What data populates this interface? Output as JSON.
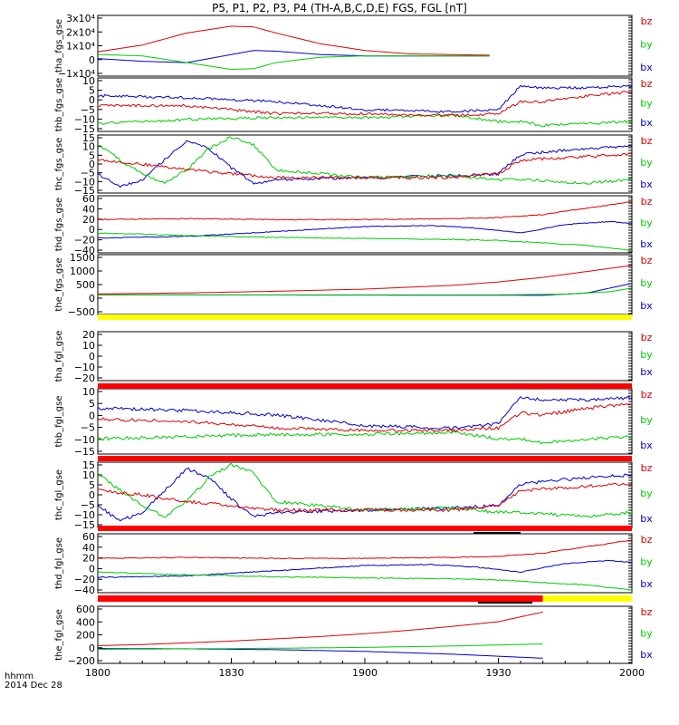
{
  "title": "P5, P1, P2, P3, P4 (TH-A,B,C,D,E) FGS, FGL [nT]",
  "footer": {
    "label1": "hhmm",
    "label2": "2014 Dec 28"
  },
  "time_ticks": [
    "1800",
    "1830",
    "1900",
    "1930",
    "2000"
  ],
  "colors": {
    "bz": "#dd0000",
    "by": "#00cc00",
    "bx": "#0000cc",
    "bar_red": "#ff0000",
    "bar_yellow": "#ffff00",
    "bar_black": "#000000"
  },
  "chart_data": [
    {
      "type": "line",
      "ylabel": "tha_fgs_gse",
      "ylim": [
        -15000,
        30000
      ],
      "ytick_labels": [
        "3x10⁴",
        "2x10⁴",
        "1x10⁴",
        "0",
        "−1x10⁴"
      ],
      "legend": [
        "bz",
        "by",
        "bx"
      ],
      "time_range": [
        "18:00",
        "19:28"
      ],
      "series": [
        {
          "name": "bz",
          "x": [
            "18:00",
            "18:10",
            "18:20",
            "18:30",
            "18:35",
            "18:40",
            "18:50",
            "19:00",
            "19:10",
            "19:28"
          ],
          "values": [
            3000,
            8000,
            17000,
            22000,
            21500,
            17000,
            9000,
            4000,
            1500,
            500
          ]
        },
        {
          "name": "by",
          "x": [
            "18:00",
            "18:10",
            "18:20",
            "18:30",
            "18:35",
            "18:40",
            "18:50",
            "19:00",
            "19:28"
          ],
          "values": [
            1000,
            0,
            -5000,
            -10000,
            -9500,
            -5000,
            -1000,
            0,
            0
          ]
        },
        {
          "name": "bx",
          "x": [
            "18:00",
            "18:10",
            "18:20",
            "18:30",
            "18:35",
            "18:40",
            "18:50",
            "19:00",
            "19:28"
          ],
          "values": [
            -2000,
            -4000,
            -5000,
            1000,
            4000,
            3500,
            1000,
            0,
            0
          ]
        }
      ]
    },
    {
      "type": "line",
      "ylabel": "thb_fgs_gse",
      "ylim": [
        -15,
        12
      ],
      "ytick_labels": [
        "10",
        "5",
        "0",
        "−5",
        "−10",
        "−15"
      ],
      "legend": [
        "bz",
        "by",
        "bx"
      ],
      "series": [
        {
          "name": "bz",
          "x": [
            "18:00",
            "18:20",
            "18:40",
            "19:00",
            "19:20",
            "19:30",
            "19:35",
            "19:40",
            "19:50",
            "20:00"
          ],
          "values": [
            -2,
            -2,
            -6,
            -6,
            -7,
            -6,
            0,
            0,
            3,
            5
          ]
        },
        {
          "name": "by",
          "x": [
            "18:00",
            "18:20",
            "18:40",
            "19:00",
            "19:20",
            "19:30",
            "19:35",
            "19:40",
            "19:50",
            "20:00"
          ],
          "values": [
            -11,
            -9,
            -8,
            -8,
            -7,
            -10,
            -10,
            -12,
            -11,
            -10
          ]
        },
        {
          "name": "bx",
          "x": [
            "18:00",
            "18:20",
            "18:40",
            "19:00",
            "19:20",
            "19:30",
            "19:35",
            "19:40",
            "19:50",
            "20:00"
          ],
          "values": [
            3,
            2,
            0,
            -4,
            -5,
            -4,
            8,
            7,
            7,
            8
          ]
        }
      ]
    },
    {
      "type": "line",
      "ylabel": "thc_fgs_gse",
      "ylim": [
        -15,
        15
      ],
      "ytick_labels": [
        "15",
        "10",
        "5",
        "0",
        "−5",
        "−10",
        "−15"
      ],
      "legend": [
        "bz",
        "by",
        "bx"
      ],
      "series": [
        {
          "name": "bz",
          "x": [
            "18:00",
            "18:10",
            "18:20",
            "18:30",
            "18:40",
            "19:00",
            "19:20",
            "19:30",
            "19:35",
            "19:50",
            "20:00"
          ],
          "values": [
            2,
            0,
            -3,
            -5,
            -7,
            -7,
            -7,
            -5,
            2,
            4,
            5
          ]
        },
        {
          "name": "by",
          "x": [
            "18:00",
            "18:05",
            "18:10",
            "18:15",
            "18:20",
            "18:25",
            "18:30",
            "18:35",
            "18:40",
            "19:00",
            "19:20",
            "19:30",
            "19:35",
            "19:50",
            "20:00"
          ],
          "values": [
            10,
            2,
            -5,
            -10,
            -3,
            8,
            14,
            10,
            -3,
            -7,
            -6,
            -8,
            -8,
            -10,
            -8
          ]
        },
        {
          "name": "bx",
          "x": [
            "18:00",
            "18:05",
            "18:10",
            "18:15",
            "18:20",
            "18:25",
            "18:30",
            "18:35",
            "18:40",
            "19:00",
            "19:20",
            "19:30",
            "19:35",
            "19:50",
            "20:00"
          ],
          "values": [
            -5,
            -12,
            -8,
            2,
            12,
            8,
            -2,
            -10,
            -8,
            -7,
            -6,
            -5,
            5,
            8,
            9
          ]
        }
      ]
    },
    {
      "type": "line",
      "ylabel": "thd_fgs_gse",
      "ylim": [
        -45,
        70
      ],
      "ytick_labels": [
        "60",
        "40",
        "20",
        "0",
        "−20",
        "−40"
      ],
      "legend": [
        "bz",
        "by",
        "bx"
      ],
      "series": [
        {
          "name": "bz",
          "x": [
            "18:00",
            "18:20",
            "18:40",
            "19:00",
            "19:20",
            "19:30",
            "19:40",
            "19:50",
            "20:00"
          ],
          "values": [
            22,
            24,
            22,
            22,
            24,
            26,
            32,
            45,
            58
          ]
        },
        {
          "name": "by",
          "x": [
            "18:00",
            "18:20",
            "18:40",
            "19:00",
            "19:20",
            "19:30",
            "19:40",
            "19:50",
            "20:00"
          ],
          "values": [
            -5,
            -10,
            -14,
            -16,
            -18,
            -20,
            -25,
            -30,
            -40
          ]
        },
        {
          "name": "bx",
          "x": [
            "18:00",
            "18:20",
            "18:40",
            "19:00",
            "19:15",
            "19:25",
            "19:35",
            "19:45",
            "19:55",
            "20:00"
          ],
          "values": [
            -15,
            -12,
            -2,
            8,
            10,
            5,
            -5,
            12,
            18,
            14
          ]
        }
      ]
    },
    {
      "type": "line",
      "ylabel": "the_fgs_gse",
      "ylim": [
        -800,
        1700
      ],
      "ytick_labels": [
        "1500",
        "1000",
        "500",
        "0",
        "−500"
      ],
      "legend": [
        "bz",
        "by",
        "bx"
      ],
      "series": [
        {
          "name": "bz",
          "x": [
            "18:00",
            "18:20",
            "18:40",
            "19:00",
            "19:20",
            "19:30",
            "19:40",
            "19:50",
            "20:00"
          ],
          "values": [
            60,
            100,
            170,
            260,
            420,
            560,
            750,
            1000,
            1250
          ]
        },
        {
          "name": "by",
          "x": [
            "18:00",
            "19:00",
            "19:30",
            "19:45",
            "19:55",
            "20:00"
          ],
          "values": [
            20,
            20,
            20,
            50,
            150,
            300
          ]
        },
        {
          "name": "bx",
          "x": [
            "18:00",
            "19:00",
            "19:40",
            "19:50",
            "20:00"
          ],
          "values": [
            20,
            10,
            0,
            100,
            500
          ]
        }
      ]
    },
    {
      "type": "line",
      "ylabel": "tha_fgl_gse",
      "ylim": [
        -25,
        25
      ],
      "ytick_labels": [
        "20",
        "10",
        "0",
        "−10",
        "−20"
      ],
      "legend": [
        "bz",
        "by",
        "bx"
      ],
      "series": []
    },
    {
      "type": "line",
      "ylabel": "thb_fgl_gse",
      "ylim": [
        -18,
        12
      ],
      "ytick_labels": [
        "10",
        "5",
        "0",
        "−5",
        "−10",
        "−15"
      ],
      "legend": [
        "bz",
        "by",
        "bx"
      ],
      "series": [
        {
          "name": "bz",
          "x": [
            "18:00",
            "18:20",
            "18:40",
            "19:00",
            "19:20",
            "19:30",
            "19:35",
            "19:40",
            "19:50",
            "20:00"
          ],
          "values": [
            -2,
            -3,
            -6,
            -7,
            -7,
            -6,
            1,
            0,
            3,
            5
          ]
        },
        {
          "name": "by",
          "x": [
            "18:00",
            "18:20",
            "18:40",
            "19:00",
            "19:20",
            "19:30",
            "19:35",
            "19:40",
            "19:50",
            "20:00"
          ],
          "values": [
            -11,
            -10,
            -9,
            -9,
            -8,
            -11,
            -11,
            -13,
            -11,
            -10
          ]
        },
        {
          "name": "bx",
          "x": [
            "18:00",
            "18:20",
            "18:40",
            "19:00",
            "19:20",
            "19:30",
            "19:35",
            "19:40",
            "19:50",
            "20:00"
          ],
          "values": [
            3,
            2,
            0,
            -5,
            -6,
            -4,
            8,
            7,
            7,
            8
          ]
        }
      ]
    },
    {
      "type": "line",
      "ylabel": "thc_fgl_gse",
      "ylim": [
        -15,
        15
      ],
      "ytick_labels": [
        "15",
        "10",
        "5",
        "0",
        "−5",
        "−10",
        "−15"
      ],
      "legend": [
        "bz",
        "by",
        "bx"
      ],
      "series": [
        {
          "name": "bz",
          "x": [
            "18:00",
            "18:10",
            "18:20",
            "18:30",
            "18:40",
            "19:00",
            "19:20",
            "19:30",
            "19:35",
            "19:50",
            "20:00"
          ],
          "values": [
            2,
            0,
            -3,
            -5,
            -7,
            -7,
            -7,
            -5,
            2,
            4,
            5
          ]
        },
        {
          "name": "by",
          "x": [
            "18:00",
            "18:05",
            "18:10",
            "18:15",
            "18:20",
            "18:25",
            "18:30",
            "18:35",
            "18:40",
            "19:00",
            "19:20",
            "19:30",
            "19:35",
            "19:50",
            "20:00"
          ],
          "values": [
            10,
            2,
            -5,
            -10,
            -3,
            8,
            14,
            10,
            -3,
            -7,
            -6,
            -8,
            -8,
            -10,
            -8
          ]
        },
        {
          "name": "bx",
          "x": [
            "18:00",
            "18:05",
            "18:10",
            "18:15",
            "18:20",
            "18:25",
            "18:30",
            "18:35",
            "18:40",
            "19:00",
            "19:20",
            "19:30",
            "19:35",
            "19:50",
            "20:00"
          ],
          "values": [
            -5,
            -12,
            -8,
            2,
            12,
            8,
            -2,
            -10,
            -8,
            -7,
            -6,
            -5,
            5,
            8,
            9
          ]
        }
      ]
    },
    {
      "type": "line",
      "ylabel": "thd_fgl_gse",
      "ylim": [
        -45,
        70
      ],
      "ytick_labels": [
        "60",
        "40",
        "20",
        "0",
        "−20",
        "−40"
      ],
      "legend": [
        "bz",
        "by",
        "bx"
      ],
      "series": [
        {
          "name": "bz",
          "x": [
            "18:00",
            "18:20",
            "18:40",
            "19:00",
            "19:20",
            "19:30",
            "19:40",
            "19:50",
            "20:00"
          ],
          "values": [
            22,
            24,
            22,
            22,
            24,
            26,
            32,
            45,
            58
          ]
        },
        {
          "name": "by",
          "x": [
            "18:00",
            "18:20",
            "18:40",
            "19:00",
            "19:20",
            "19:30",
            "19:40",
            "19:50",
            "20:00"
          ],
          "values": [
            -5,
            -10,
            -14,
            -16,
            -18,
            -20,
            -25,
            -30,
            -40
          ]
        },
        {
          "name": "bx",
          "x": [
            "18:00",
            "18:20",
            "18:40",
            "19:00",
            "19:15",
            "19:25",
            "19:35",
            "19:45",
            "19:55",
            "20:00"
          ],
          "values": [
            -15,
            -12,
            -2,
            8,
            10,
            5,
            -5,
            12,
            18,
            14
          ]
        }
      ]
    },
    {
      "type": "line",
      "ylabel": "the_fgl_gse",
      "ylim": [
        -250,
        750
      ],
      "ytick_labels": [
        "600",
        "400",
        "200",
        "0",
        "−200"
      ],
      "legend": [
        "bz",
        "by",
        "bx"
      ],
      "series": [
        {
          "name": "bz",
          "x": [
            "18:00",
            "18:10",
            "18:20",
            "18:30",
            "18:40",
            "18:50",
            "19:00",
            "19:10",
            "19:20",
            "19:30",
            "19:40"
          ],
          "values": [
            60,
            80,
            110,
            140,
            180,
            220,
            270,
            330,
            400,
            480,
            650
          ]
        },
        {
          "name": "by",
          "x": [
            "18:00",
            "18:20",
            "18:40",
            "19:00",
            "19:20",
            "19:40"
          ],
          "values": [
            -5,
            5,
            15,
            30,
            55,
            90
          ]
        },
        {
          "name": "bx",
          "x": [
            "18:00",
            "18:20",
            "18:40",
            "19:00",
            "19:20",
            "19:40"
          ],
          "values": [
            10,
            5,
            -10,
            -40,
            -90,
            -160
          ]
        }
      ]
    }
  ],
  "status_bars": [
    {
      "color": "bar_yellow",
      "from": "18:00",
      "to": "20:00"
    },
    {
      "color": "bar_red",
      "from": "18:00",
      "to": "20:00"
    },
    {
      "color": "bar_red",
      "from": "18:00",
      "to": "20:00"
    },
    {
      "color": "bar_red",
      "from": "18:00",
      "to": "20:00"
    },
    {
      "color": "bar_red",
      "from": "18:00",
      "to": "19:40"
    },
    {
      "color": "bar_yellow",
      "from": "19:40",
      "to": "20:00"
    }
  ]
}
